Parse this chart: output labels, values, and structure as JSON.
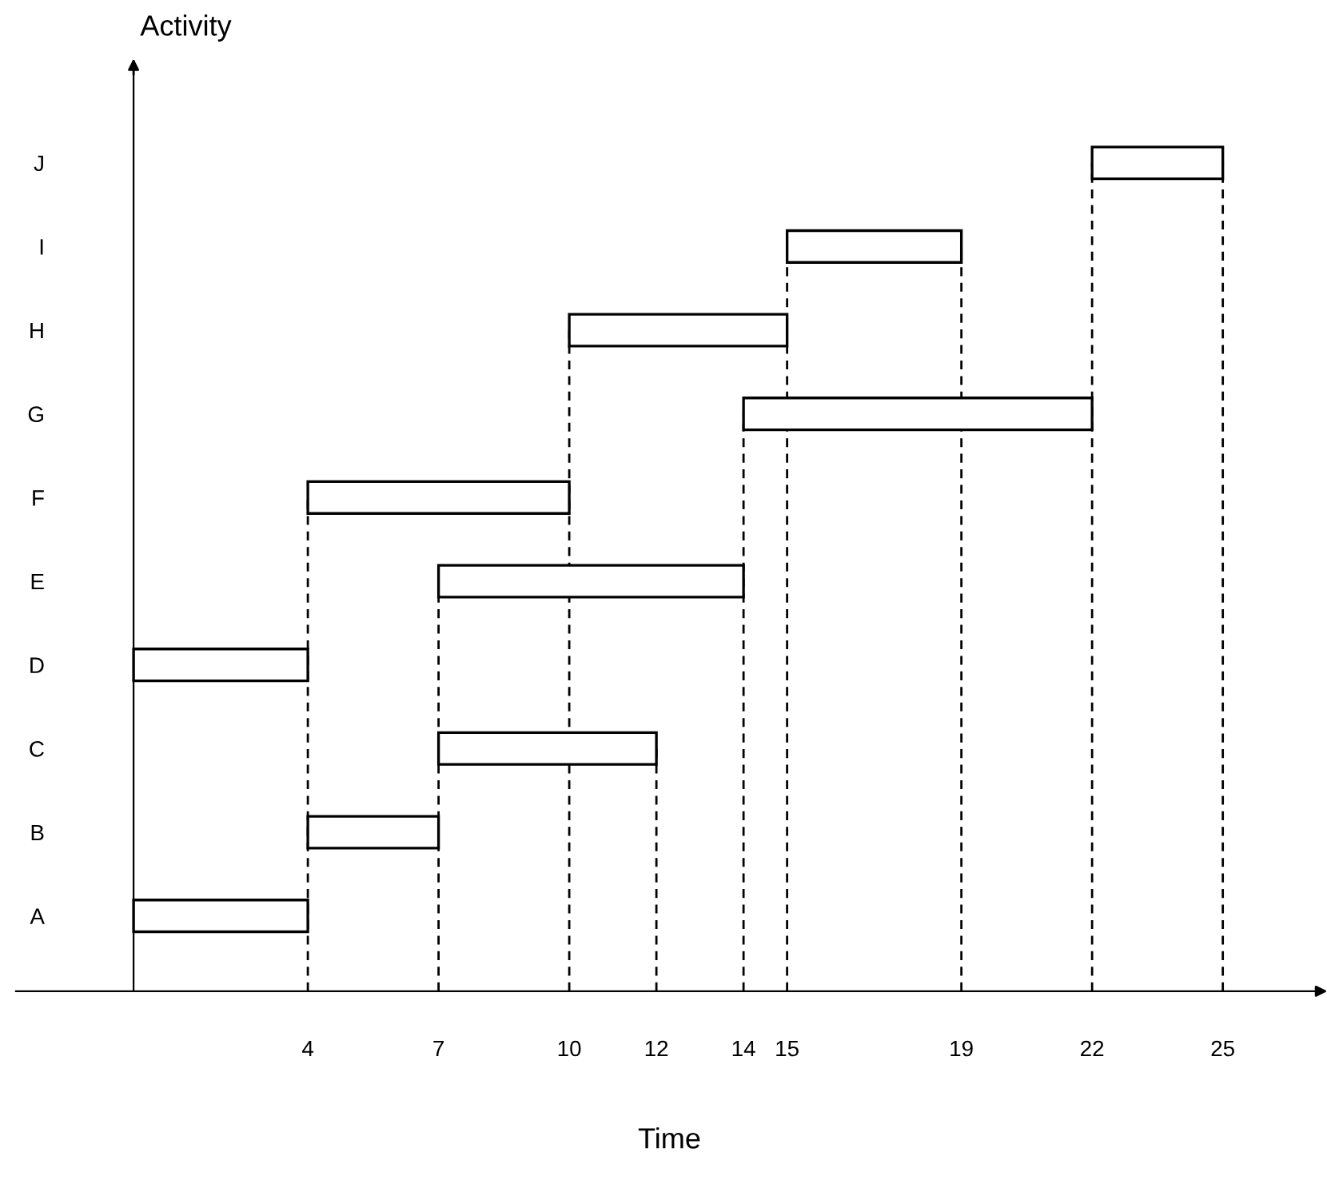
{
  "chart_data": {
    "type": "bar",
    "orientation": "horizontal",
    "xlabel": "Time",
    "ylabel": "Activity",
    "categories": [
      "J",
      "I",
      "H",
      "G",
      "F",
      "E",
      "D",
      "C",
      "B",
      "A"
    ],
    "base": [
      22,
      15,
      10,
      14,
      4,
      7,
      0,
      7,
      4,
      0
    ],
    "values": [
      3,
      4,
      5,
      8,
      6,
      7,
      4,
      5,
      3,
      4
    ],
    "color": "#ffffff",
    "xlim": [
      -2.7,
      27.3
    ],
    "xticks": [
      4,
      7,
      10,
      12,
      14,
      15,
      19,
      22,
      25
    ],
    "ref_lines": [
      {
        "axis": "x",
        "value": 4,
        "line_style": "dashed"
      },
      {
        "axis": "x",
        "value": 7,
        "line_style": "dashed"
      },
      {
        "axis": "x",
        "value": 10,
        "line_style": "dashed"
      },
      {
        "axis": "x",
        "value": 12,
        "line_style": "dashed"
      },
      {
        "axis": "x",
        "value": 14,
        "line_style": "dashed"
      },
      {
        "axis": "x",
        "value": 15,
        "line_style": "dashed"
      },
      {
        "axis": "x",
        "value": 19,
        "line_style": "dashed"
      },
      {
        "axis": "x",
        "value": 22,
        "line_style": "dashed"
      },
      {
        "axis": "x",
        "value": 25,
        "line_style": "dashed"
      }
    ],
    "grid": false
  }
}
